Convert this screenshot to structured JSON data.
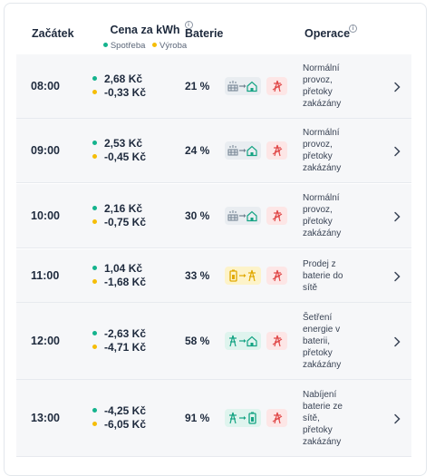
{
  "header": {
    "start": "Začátek",
    "price": "Cena za kWh",
    "legend_consumption": "Spotřeba",
    "legend_production": "Výroba",
    "battery": "Baterie",
    "operation": "Operace",
    "info_glyph": "i"
  },
  "colors": {
    "consumption_dot": "#14b38d",
    "production_dot": "#f5bd07",
    "grid_blocked": "#e04848"
  },
  "rows": [
    {
      "time": "08:00",
      "consumption": "2,68 Kč",
      "production": "-0,33 Kč",
      "battery": "21 %",
      "flow": "solar-to-home",
      "operation": [
        "Normální",
        "provoz,",
        "přetoky",
        "zakázány"
      ]
    },
    {
      "time": "09:00",
      "consumption": "2,53 Kč",
      "production": "-0,45 Kč",
      "battery": "24 %",
      "flow": "solar-to-home",
      "operation": [
        "Normální",
        "provoz,",
        "přetoky",
        "zakázány"
      ]
    },
    {
      "time": "10:00",
      "consumption": "2,16 Kč",
      "production": "-0,75 Kč",
      "battery": "30 %",
      "flow": "solar-to-home",
      "operation": [
        "Normální",
        "provoz,",
        "přetoky",
        "zakázány"
      ]
    },
    {
      "time": "11:00",
      "consumption": "1,04 Kč",
      "production": "-1,68 Kč",
      "battery": "33 %",
      "flow": "battery-to-grid",
      "operation": [
        "Prodej z",
        "baterie do",
        "sítě"
      ]
    },
    {
      "time": "12:00",
      "consumption": "-2,63 Kč",
      "production": "-4,71 Kč",
      "battery": "58 %",
      "flow": "grid-to-home",
      "operation": [
        "Šetření",
        "energie v",
        "baterii,",
        "přetoky",
        "zakázány"
      ]
    },
    {
      "time": "13:00",
      "consumption": "-4,25 Kč",
      "production": "-6,05 Kč",
      "battery": "91 %",
      "flow": "grid-to-battery",
      "operation": [
        "Nabíjení",
        "baterie ze",
        "sítě,",
        "přetoky",
        "zakázány"
      ]
    }
  ]
}
